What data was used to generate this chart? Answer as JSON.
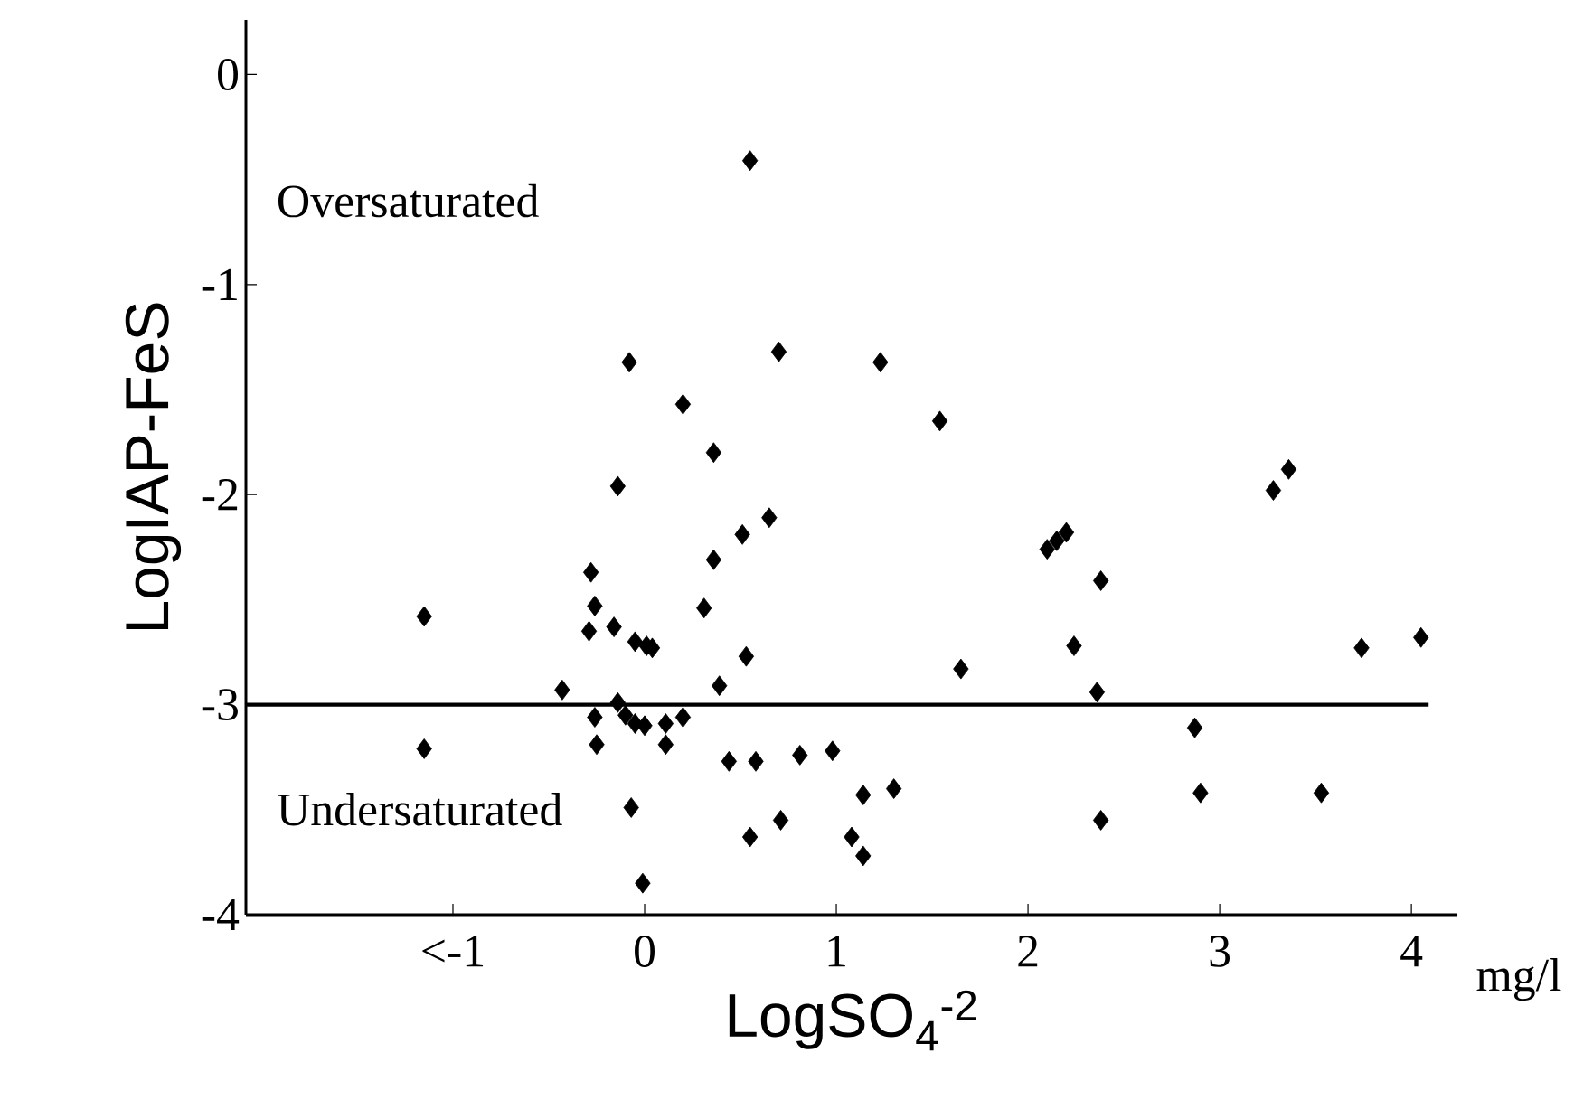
{
  "chart_data": {
    "type": "scatter",
    "xlabel": "LogSO$_{4}$$^{-2}$",
    "ylabel": "LogIAP-FeS",
    "x": [
      -1.15,
      -1.15,
      -0.28,
      -0.26,
      -0.29,
      -0.16,
      -0.05,
      0.01,
      0.04,
      -0.43,
      -0.14,
      -0.1,
      -0.05,
      0.0,
      0.11,
      0.2,
      -0.26,
      -0.25,
      0.11,
      0.31,
      0.36,
      0.51,
      0.65,
      0.53,
      0.39,
      0.44,
      0.58,
      0.81,
      0.98,
      1.14,
      1.3,
      -0.07,
      0.55,
      0.71,
      1.08,
      1.14,
      -0.01,
      1.65,
      0.55,
      -0.08,
      0.7,
      1.23,
      1.54,
      0.2,
      0.36,
      -0.14,
      3.36,
      3.28,
      2.1,
      2.15,
      2.2,
      2.38,
      2.24,
      2.36,
      2.87,
      2.9,
      3.53,
      2.38,
      3.74,
      4.05
    ],
    "values": [
      -2.58,
      -3.21,
      -2.37,
      -2.53,
      -2.65,
      -2.63,
      -2.7,
      -2.72,
      -2.73,
      -2.93,
      -2.99,
      -3.05,
      -3.09,
      -3.1,
      -3.09,
      -3.06,
      -3.06,
      -3.19,
      -3.19,
      -2.54,
      -2.31,
      -2.19,
      -2.11,
      -2.77,
      -2.91,
      -3.27,
      -3.27,
      -3.24,
      -3.22,
      -3.43,
      -3.4,
      -3.49,
      -3.63,
      -3.55,
      -3.63,
      -3.72,
      -3.85,
      -2.83,
      -0.41,
      -1.37,
      -1.32,
      -1.37,
      -1.65,
      -1.57,
      -1.8,
      -1.96,
      -1.88,
      -1.98,
      -2.26,
      -2.22,
      -2.18,
      -2.41,
      -2.72,
      -2.94,
      -3.11,
      -3.42,
      -3.42,
      -3.55,
      -2.73,
      -2.68
    ],
    "color": "#000000",
    "marker": "diamond",
    "xlim": [
      -2.08,
      4.24
    ],
    "ylim": [
      -4,
      0.26
    ],
    "xticks": [
      {
        "value": -1,
        "label": "<-1"
      },
      0,
      1,
      2,
      3,
      4
    ],
    "yticks": [
      0,
      -1,
      -2,
      -3,
      -4
    ],
    "ref_lines": [
      {
        "axis": "y",
        "value": -3,
        "color": "#000000"
      }
    ],
    "annotations": [
      "Oversaturated",
      "Undersaturated",
      "mg/l"
    ]
  }
}
